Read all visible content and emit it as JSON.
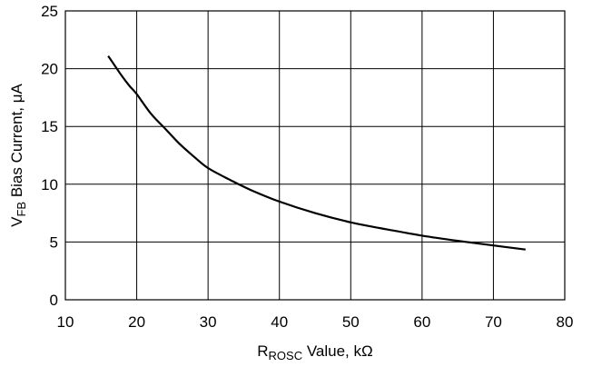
{
  "chart_data": {
    "type": "line",
    "title": "",
    "xlabel": {
      "main": "R",
      "sub": "ROSC",
      "rest": " Value, kΩ"
    },
    "ylabel": {
      "main": "V",
      "sub": "FB",
      "rest": " Bias Current, μA"
    },
    "xlim": [
      10,
      80
    ],
    "ylim": [
      0,
      25
    ],
    "xticks": [
      "10",
      "20",
      "30",
      "40",
      "50",
      "60",
      "70",
      "80"
    ],
    "yticks": [
      "0",
      "5",
      "10",
      "15",
      "20",
      "25"
    ],
    "grid": true,
    "legend": "none",
    "series": [
      {
        "x": [
          16,
          17,
          18,
          19,
          20,
          22,
          24,
          26,
          28,
          30,
          33,
          36,
          40,
          45,
          50,
          55,
          60,
          65,
          70,
          74.5
        ],
        "y": [
          21.1,
          20.2,
          19.3,
          18.5,
          17.8,
          16.1,
          14.8,
          13.5,
          12.4,
          11.4,
          10.4,
          9.5,
          8.5,
          7.5,
          6.7,
          6.1,
          5.55,
          5.1,
          4.7,
          4.35
        ]
      }
    ]
  }
}
